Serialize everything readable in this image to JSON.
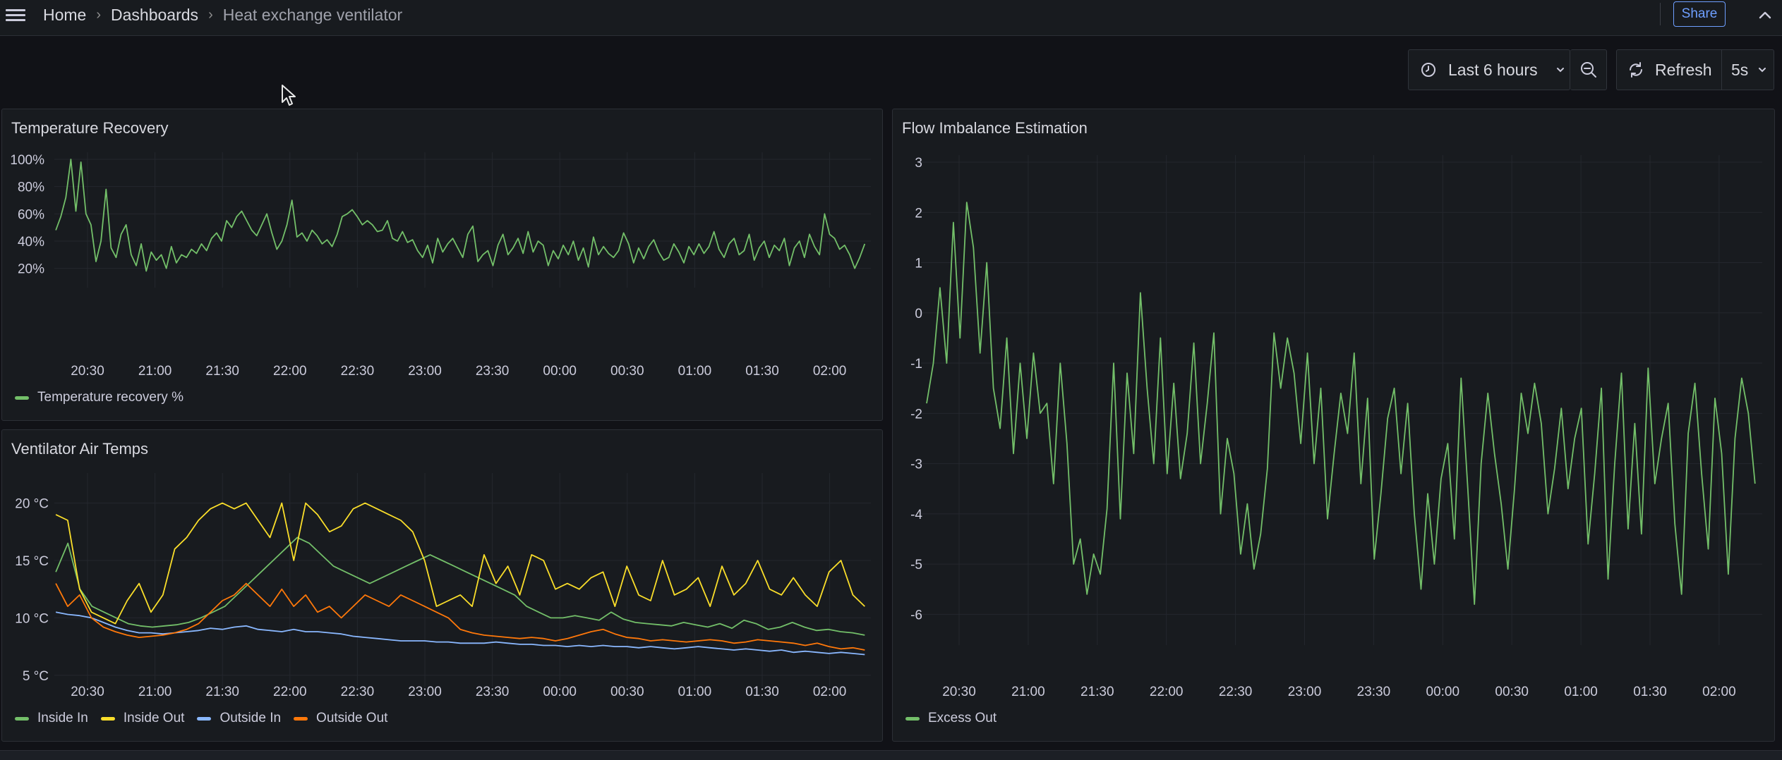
{
  "breadcrumb": {
    "home": "Home",
    "dashboards": "Dashboards",
    "current": "Heat exchange ventilator",
    "separator": "›"
  },
  "header": {
    "share_label": "Share"
  },
  "toolbar": {
    "time_range_label": "Last 6 hours",
    "refresh_label": "Refresh",
    "refresh_interval": "5s"
  },
  "colors": {
    "green": "#73bf69",
    "yellow": "#fade2a",
    "blue": "#8ab8ff",
    "orange": "#ff780a",
    "accent": "#6e9fff"
  },
  "panels": {
    "temp_recovery": {
      "title": "Temperature Recovery"
    },
    "air_temps": {
      "title": "Ventilator Air Temps"
    },
    "flow": {
      "title": "Flow Imbalance Estimation"
    }
  },
  "chart_data": [
    {
      "type": "line",
      "title": "Temperature Recovery",
      "x_ticks": [
        "20:30",
        "21:00",
        "21:30",
        "22:00",
        "22:30",
        "23:00",
        "23:30",
        "00:00",
        "00:30",
        "01:00",
        "01:30",
        "02:00"
      ],
      "y_ticks": [
        "20%",
        "40%",
        "60%",
        "80%",
        "100%"
      ],
      "ylim": [
        10,
        100
      ],
      "legend": "bottom-left",
      "series": [
        {
          "name": "Temperature recovery %",
          "color": "green",
          "values": [
            48,
            58,
            72,
            100,
            62,
            98,
            60,
            52,
            25,
            40,
            78,
            35,
            28,
            45,
            52,
            30,
            22,
            38,
            18,
            32,
            26,
            30,
            20,
            36,
            24,
            30,
            28,
            34,
            31,
            38,
            33,
            42,
            46,
            40,
            55,
            50,
            58,
            62,
            55,
            48,
            44,
            52,
            60,
            46,
            34,
            40,
            52,
            70,
            43,
            46,
            40,
            48,
            44,
            38,
            41,
            36,
            45,
            58,
            60,
            63,
            58,
            52,
            55,
            52,
            47,
            48,
            55,
            42,
            40,
            47,
            39,
            41,
            33,
            28,
            37,
            24,
            42,
            32,
            38,
            42,
            35,
            28,
            45,
            51,
            25,
            30,
            33,
            22,
            37,
            45,
            30,
            35,
            42,
            31,
            47,
            32,
            40,
            37,
            22,
            33,
            27,
            37,
            30,
            40,
            26,
            35,
            21,
            43,
            30,
            36,
            31,
            28,
            33,
            46,
            38,
            24,
            35,
            27,
            36,
            41,
            32,
            26,
            28,
            38,
            32,
            24,
            36,
            30,
            38,
            31,
            36,
            47,
            34,
            28,
            38,
            42,
            30,
            33,
            45,
            26,
            35,
            40,
            28,
            37,
            33,
            42,
            22,
            35,
            40,
            28,
            45,
            36,
            30,
            60,
            45,
            42,
            34,
            37,
            30,
            20,
            28,
            38
          ]
        }
      ]
    },
    {
      "type": "line",
      "title": "Ventilator Air Temps",
      "x_ticks": [
        "20:30",
        "21:00",
        "21:30",
        "22:00",
        "22:30",
        "23:00",
        "23:30",
        "00:00",
        "00:30",
        "01:00",
        "01:30",
        "02:00"
      ],
      "y_ticks": [
        "5 °C",
        "10 °C",
        "15 °C",
        "20 °C"
      ],
      "ylim": [
        4.5,
        22
      ],
      "legend": "bottom-left",
      "series": [
        {
          "name": "Inside In",
          "color": "green",
          "values": [
            14,
            16.5,
            12.5,
            11,
            10.5,
            10,
            9.5,
            9.3,
            9.2,
            9.3,
            9.4,
            9.6,
            10,
            10.5,
            11,
            12,
            13,
            14,
            15,
            16,
            17,
            16.5,
            15.5,
            14.5,
            14,
            13.5,
            13,
            13.5,
            14,
            14.5,
            15,
            15.5,
            15,
            14.5,
            14,
            13.5,
            13,
            12.5,
            12,
            11,
            10.5,
            10,
            10,
            10.2,
            10,
            9.8,
            10.5,
            9.9,
            9.6,
            9.5,
            9.4,
            9.3,
            9.6,
            9.4,
            9.2,
            9.5,
            9.1,
            9.8,
            9.5,
            9,
            9.2,
            9.6,
            9.2,
            8.9,
            9,
            8.8,
            8.7,
            8.5
          ]
        },
        {
          "name": "Inside Out",
          "color": "yellow",
          "values": [
            19,
            18.5,
            12.5,
            10.5,
            10,
            9.5,
            11.5,
            13,
            10.5,
            12,
            16,
            17,
            18.5,
            19.5,
            20,
            19.5,
            20,
            18.5,
            17,
            20,
            15,
            20,
            19,
            17.5,
            18,
            19.5,
            20,
            19.5,
            19,
            18.5,
            17.5,
            15,
            11,
            11.5,
            12,
            11,
            15.5,
            13,
            14.5,
            12,
            15.5,
            15,
            12.5,
            13,
            12.5,
            13.5,
            14,
            11,
            14.5,
            12,
            11.5,
            15,
            12,
            12.5,
            13.5,
            11,
            14.5,
            12,
            13,
            15,
            12.5,
            12,
            13.5,
            12,
            11,
            14,
            15,
            12,
            11
          ]
        },
        {
          "name": "Outside In",
          "color": "blue",
          "values": [
            10.5,
            10.3,
            10.2,
            10,
            9.6,
            9.2,
            8.9,
            8.7,
            8.7,
            8.6,
            8.7,
            8.8,
            8.9,
            9.1,
            9,
            9.2,
            9.3,
            9,
            8.9,
            8.8,
            9,
            8.8,
            8.8,
            8.7,
            8.6,
            8.4,
            8.3,
            8.2,
            8.1,
            8,
            8,
            8,
            7.9,
            7.9,
            7.8,
            7.8,
            7.8,
            7.9,
            7.8,
            7.7,
            7.7,
            7.6,
            7.6,
            7.5,
            7.6,
            7.5,
            7.6,
            7.5,
            7.5,
            7.4,
            7.5,
            7.4,
            7.3,
            7.4,
            7.5,
            7.4,
            7.3,
            7.2,
            7.3,
            7.2,
            7.1,
            7.2,
            7,
            7.1,
            7,
            6.9,
            7,
            6.9,
            6.8
          ]
        },
        {
          "name": "Outside Out",
          "color": "orange",
          "values": [
            13,
            11,
            12,
            10,
            9.2,
            8.8,
            8.5,
            8.3,
            8.4,
            8.5,
            8.7,
            9,
            9.5,
            10.5,
            11.5,
            12,
            13,
            12,
            11,
            12.5,
            11,
            12,
            10.5,
            11,
            10,
            11,
            12,
            11.5,
            11,
            12,
            11.5,
            11,
            10.5,
            10,
            9,
            8.7,
            8.5,
            8.4,
            8.3,
            8.2,
            8.3,
            8.2,
            8,
            8.2,
            8.5,
            8.8,
            9,
            8.6,
            8.3,
            8.2,
            8,
            8.1,
            8,
            7.9,
            8,
            8.1,
            8,
            7.8,
            7.9,
            8.1,
            8,
            7.9,
            7.8,
            7.6,
            7.8,
            7.5,
            7.3,
            7.4,
            7.2
          ]
        }
      ]
    },
    {
      "type": "line",
      "title": "Flow Imbalance Estimation",
      "x_ticks": [
        "20:30",
        "21:00",
        "21:30",
        "22:00",
        "22:30",
        "23:00",
        "23:30",
        "00:00",
        "00:30",
        "01:00",
        "01:30",
        "02:00"
      ],
      "y_ticks": [
        "3",
        "2",
        "1",
        "0",
        "-1",
        "-2",
        "-3",
        "-4",
        "-5",
        "-6"
      ],
      "ylim": [
        -6.5,
        3
      ],
      "legend": "bottom-left",
      "series": [
        {
          "name": "Excess Out",
          "color": "green",
          "values": [
            -1.8,
            -1,
            0.5,
            -1,
            1.8,
            -0.5,
            2.2,
            1.3,
            -0.8,
            1,
            -1.5,
            -2.3,
            -0.5,
            -2.8,
            -1,
            -2.5,
            -0.8,
            -2,
            -1.8,
            -3.4,
            -1,
            -2.6,
            -5,
            -4.5,
            -5.6,
            -4.8,
            -5.2,
            -3.9,
            -1,
            -4.1,
            -1.2,
            -2.8,
            0.4,
            -1.5,
            -3,
            -0.5,
            -3.2,
            -1.4,
            -3.3,
            -2.4,
            -0.6,
            -3,
            -1.8,
            -0.4,
            -4,
            -2.5,
            -3.2,
            -4.8,
            -3.8,
            -5.1,
            -4.4,
            -3.1,
            -0.4,
            -1.5,
            -0.5,
            -1.2,
            -2.6,
            -0.8,
            -3,
            -1.5,
            -4.1,
            -2.8,
            -1.6,
            -2.4,
            -0.8,
            -3.4,
            -1.7,
            -4.9,
            -3.6,
            -2.1,
            -1.5,
            -3.2,
            -1.8,
            -4,
            -5.5,
            -3.6,
            -5,
            -3.3,
            -2.6,
            -4.5,
            -1.3,
            -3.5,
            -5.8,
            -3,
            -1.6,
            -2.8,
            -3.8,
            -5.1,
            -3.5,
            -1.6,
            -2.4,
            -1.4,
            -2.2,
            -4,
            -3.1,
            -1.9,
            -3.5,
            -2.5,
            -1.9,
            -4.6,
            -3.2,
            -1.5,
            -5.3,
            -3,
            -1.2,
            -4.3,
            -2.2,
            -4.4,
            -1.1,
            -3.4,
            -2.5,
            -1.8,
            -4.2,
            -5.6,
            -2.4,
            -1.4,
            -3.2,
            -4.7,
            -1.7,
            -2.8,
            -5.2,
            -2.5,
            -1.3,
            -2,
            -3.4
          ]
        }
      ]
    }
  ]
}
